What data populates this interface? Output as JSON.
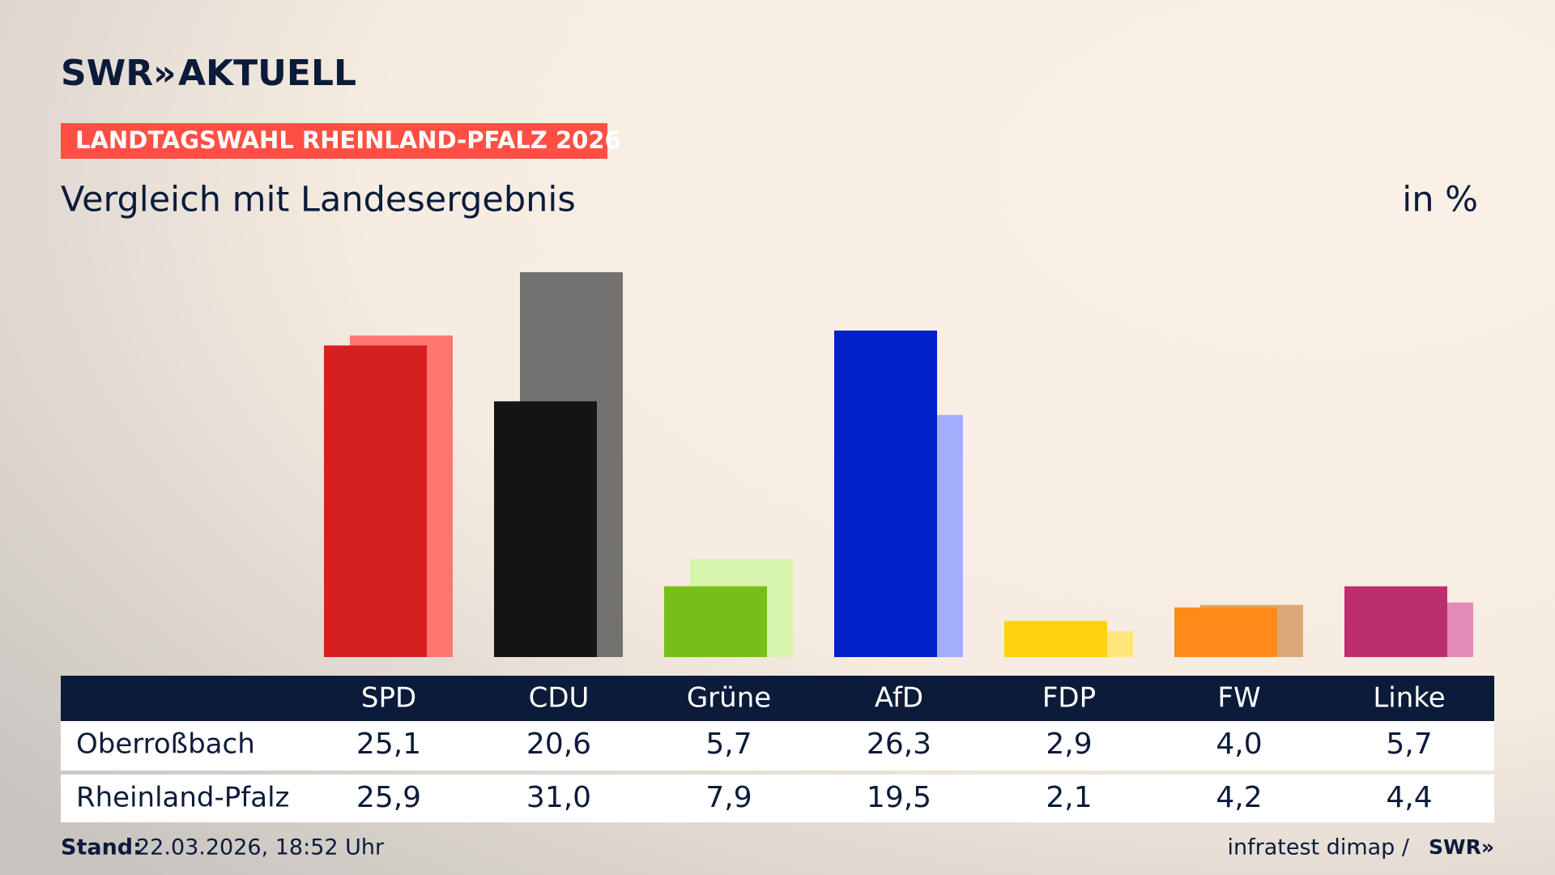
{
  "chart_data": {
    "type": "bar",
    "brand": "SWR»",
    "brand_section": "AKTUELL",
    "tag": "LANDTAGSWAHL RHEINLAND-PFALZ 2026",
    "title": "Vergleich mit Landesergebnis",
    "unit": "in %",
    "categories": [
      "SPD",
      "CDU",
      "Grüne",
      "AfD",
      "FDP",
      "FW",
      "Linke"
    ],
    "series": [
      {
        "name": "Oberroßbach",
        "colors": [
          "#d62020",
          "#141414",
          "#78be1a",
          "#0021c8",
          "#ffd10f",
          "#ff8a18",
          "#bd2e6e"
        ],
        "values": [
          25.1,
          20.6,
          5.7,
          26.3,
          2.9,
          4.0,
          5.7
        ],
        "value_labels": [
          "25,1",
          "20,6",
          "5,7",
          "26,3",
          "2,9",
          "4,0",
          "5,7"
        ]
      },
      {
        "name": "Rheinland-Pfalz",
        "colors": [
          "#ff776e",
          "#737270",
          "#d7f5aa",
          "#a1aefc",
          "#ffe57a",
          "#dca877",
          "#e38bb6"
        ],
        "values": [
          25.9,
          31.0,
          7.9,
          19.5,
          2.1,
          4.2,
          4.4
        ],
        "value_labels": [
          "25,9",
          "31,0",
          "7,9",
          "19,5",
          "2,1",
          "4,2",
          "4,4"
        ]
      }
    ],
    "footer_label": "Stand:",
    "footer_date": "22.03.2026, 18:52 Uhr",
    "source": "infratest dimap /",
    "source_brand": "SWR»"
  }
}
